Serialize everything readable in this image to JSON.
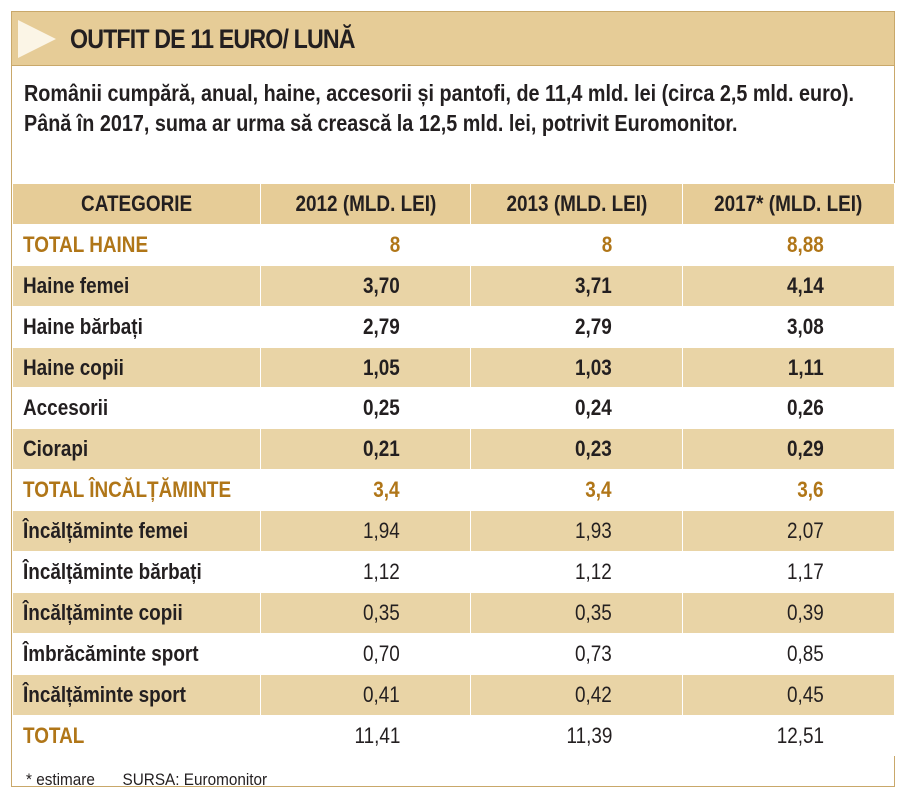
{
  "title": "OUTFIT DE 11 EURO/ LUNĂ",
  "intro": "Românii cumpără, anual, haine, accesorii și pantofi, de 11,4 mld. lei (circa 2,5 mld. euro). Până în 2017, suma ar urma să crească la 12,5 mld. lei, potrivit Euromonitor.",
  "colors": {
    "header_bg": "#e6cc97",
    "row_alt": "#e9d4a6",
    "accent": "#b07618"
  },
  "table": {
    "headers": [
      "CATEGORIE",
      "2012 (MLD. LEI)",
      "2013 (MLD. LEI)",
      "2017* (MLD. LEI)"
    ],
    "rows": [
      {
        "label": "TOTAL HAINE",
        "values": [
          "8",
          "8",
          "8,88"
        ]
      },
      {
        "label": "Haine femei",
        "values": [
          "3,70",
          "3,71",
          "4,14"
        ]
      },
      {
        "label": "Haine bărbați",
        "values": [
          "2,79",
          "2,79",
          "3,08"
        ]
      },
      {
        "label": "Haine copii",
        "values": [
          "1,05",
          "1,03",
          "1,11"
        ]
      },
      {
        "label": "Accesorii",
        "values": [
          "0,25",
          "0,24",
          "0,26"
        ]
      },
      {
        "label": "Ciorapi",
        "values": [
          "0,21",
          "0,23",
          "0,29"
        ]
      },
      {
        "label": "TOTAL ÎNCĂLȚĂMINTE",
        "values": [
          "3,4",
          "3,4",
          "3,6"
        ]
      },
      {
        "label": "Încălțăminte femei",
        "values": [
          "1,94",
          "1,93",
          "2,07"
        ]
      },
      {
        "label": "Încălțăminte bărbați",
        "values": [
          "1,12",
          "1,12",
          "1,17"
        ]
      },
      {
        "label": "Încălțăminte copii",
        "values": [
          "0,35",
          "0,35",
          "0,39"
        ]
      },
      {
        "label": "Îmbrăcăminte sport",
        "values": [
          "0,70",
          "0,73",
          "0,85"
        ]
      },
      {
        "label": "Încălțăminte sport",
        "values": [
          "0,41",
          "0,42",
          "0,45"
        ]
      },
      {
        "label": "TOTAL",
        "values": [
          "11,41",
          "11,39",
          "12,51"
        ]
      }
    ]
  },
  "footnote": {
    "note": "* estimare",
    "source": "SURSA: Euromonitor"
  }
}
